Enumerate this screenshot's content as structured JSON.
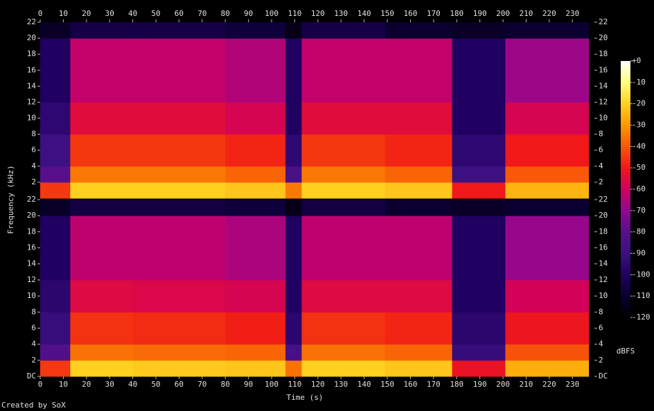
{
  "chart_data": {
    "type": "spectrogram",
    "xlabel": "Time (s)",
    "ylabel": "Frequency (kHz)",
    "colorbar_label": "dBFS",
    "credit": "Created by SoX",
    "xlim": [
      0,
      239.5
    ],
    "xticks": [
      0,
      10,
      20,
      30,
      40,
      50,
      60,
      70,
      80,
      90,
      100,
      110,
      120,
      130,
      140,
      150,
      160,
      170,
      180,
      190,
      200,
      210,
      220,
      230
    ],
    "ylim": [
      0,
      22
    ],
    "zlim": [
      -120,
      0
    ],
    "zticks": [
      {
        "value": 0,
        "label": "+0"
      },
      -10,
      -20,
      -30,
      -40,
      -50,
      -60,
      -70,
      -80,
      -90,
      -100,
      -110,
      -120
    ],
    "colormap": [
      "#000000",
      "#0a0030",
      "#200060",
      "#3c1080",
      "#58108a",
      "#900890",
      "#d00060",
      "#f01818",
      "#f85808",
      "#fc9800",
      "#ffd020",
      "#ffff80",
      "#ffffff"
    ],
    "time_edges": [
      0,
      13,
      40,
      80,
      106,
      113,
      149,
      178,
      201,
      237
    ],
    "freq_edges": [
      0,
      2,
      4,
      8,
      12,
      20,
      22
    ],
    "channels": [
      {
        "yticks": [
          2,
          4,
          6,
          8,
          10,
          12,
          14,
          16,
          18,
          20,
          22
        ],
        "values": [
          [
            -45,
            -80,
            -90,
            -95,
            -100,
            -112
          ],
          [
            -20,
            -35,
            -45,
            -55,
            -62,
            -105
          ],
          [
            -20,
            -35,
            -45,
            -55,
            -62,
            -105
          ],
          [
            -22,
            -38,
            -48,
            -58,
            -65,
            -108
          ],
          [
            -35,
            -85,
            -95,
            -100,
            -100,
            -115
          ],
          [
            -20,
            -35,
            -45,
            -55,
            -62,
            -105
          ],
          [
            -22,
            -38,
            -48,
            -55,
            -62,
            -110
          ],
          [
            -50,
            -90,
            -95,
            -100,
            -100,
            -112
          ],
          [
            -25,
            -40,
            -50,
            -58,
            -68,
            -110
          ]
        ]
      },
      {
        "yticks": [
          {
            "value": 0,
            "label": "DC"
          },
          2,
          4,
          6,
          8,
          10,
          12,
          14,
          16,
          18,
          20,
          22
        ],
        "values": [
          [
            -45,
            -82,
            -92,
            -96,
            -100,
            -112
          ],
          [
            -20,
            -36,
            -46,
            -56,
            -63,
            -106
          ],
          [
            -21,
            -37,
            -47,
            -57,
            -63,
            -106
          ],
          [
            -22,
            -38,
            -49,
            -58,
            -66,
            -108
          ],
          [
            -36,
            -86,
            -96,
            -100,
            -100,
            -115
          ],
          [
            -20,
            -36,
            -46,
            -56,
            -63,
            -106
          ],
          [
            -22,
            -38,
            -48,
            -56,
            -63,
            -110
          ],
          [
            -52,
            -92,
            -96,
            -100,
            -100,
            -112
          ],
          [
            -26,
            -41,
            -51,
            -59,
            -69,
            -110
          ]
        ]
      }
    ]
  }
}
